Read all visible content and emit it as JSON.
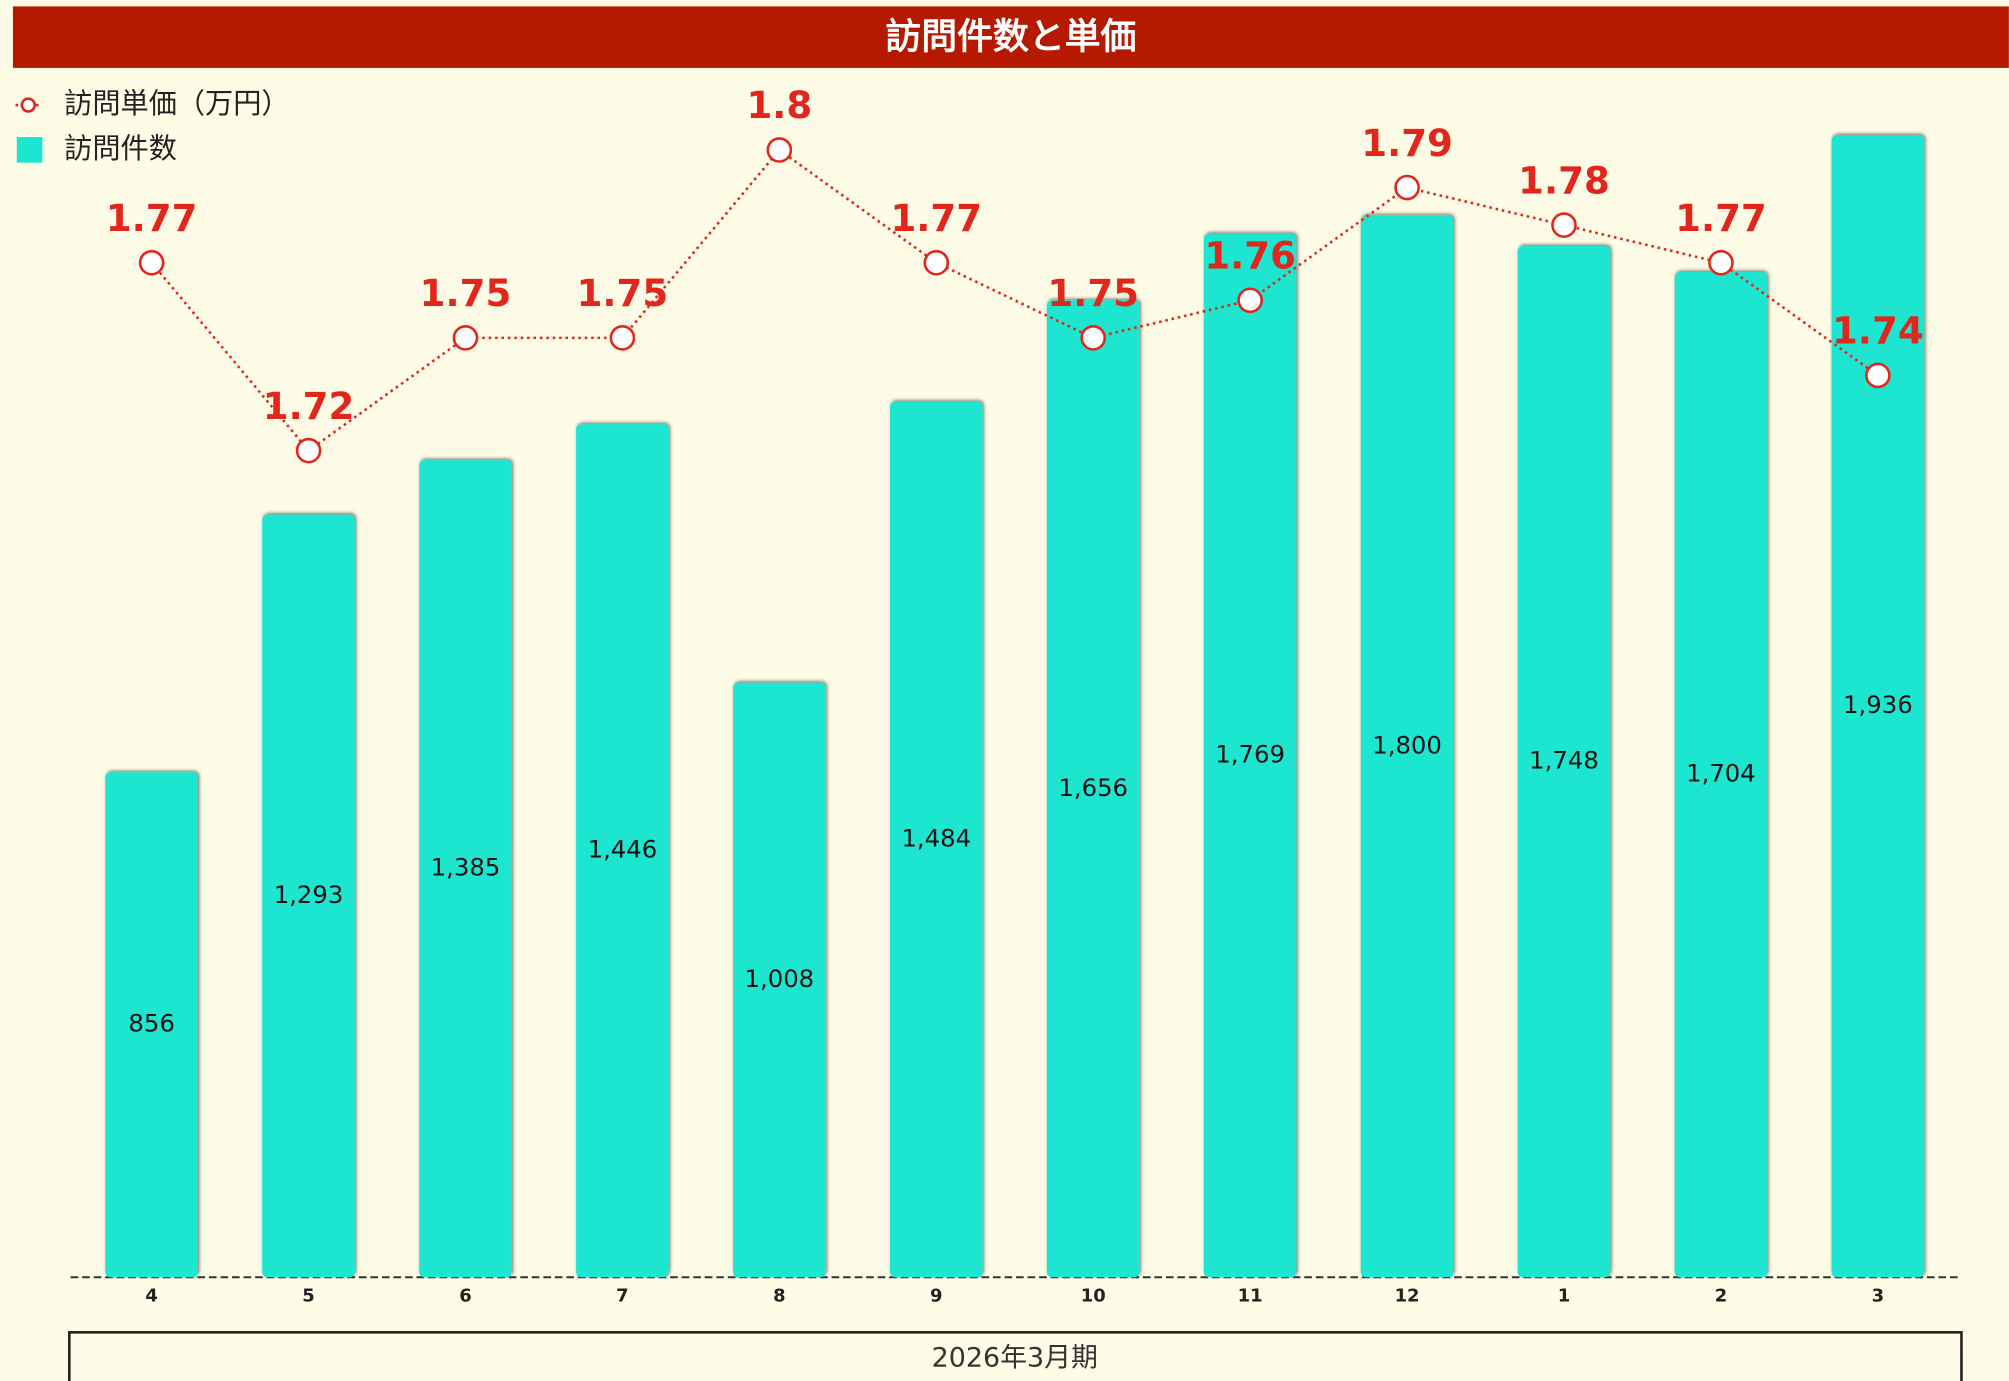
{
  "chart_data": {
    "type": "bar",
    "title": "訪問件数と単価",
    "x_label": "2026年3月期",
    "categories": [
      "4",
      "5",
      "6",
      "7",
      "8",
      "9",
      "10",
      "11",
      "12",
      "1",
      "2",
      "3"
    ],
    "ylim": [
      0,
      2000
    ],
    "y2lim": [
      1.5,
      1.814
    ],
    "series": [
      {
        "name": "訪問単価（万円）",
        "type": "line",
        "axis": "y2",
        "color": "#e3261c",
        "values": [
          1.77,
          1.72,
          1.75,
          1.75,
          1.8,
          1.77,
          1.75,
          1.76,
          1.79,
          1.78,
          1.77,
          1.74
        ]
      },
      {
        "name": "訪問件数",
        "type": "bar",
        "color": "#1ae6d0",
        "values": [
          856,
          1293,
          1385,
          1446,
          1008,
          1484,
          1656,
          1769,
          1800,
          1748,
          1704,
          1936
        ],
        "value_labels": [
          "856",
          "1,293",
          "1,385",
          "1,446",
          "1,008",
          "1,484",
          "1,656",
          "1,769",
          "1,800",
          "1,748",
          "1,704",
          "1,936"
        ]
      }
    ]
  }
}
